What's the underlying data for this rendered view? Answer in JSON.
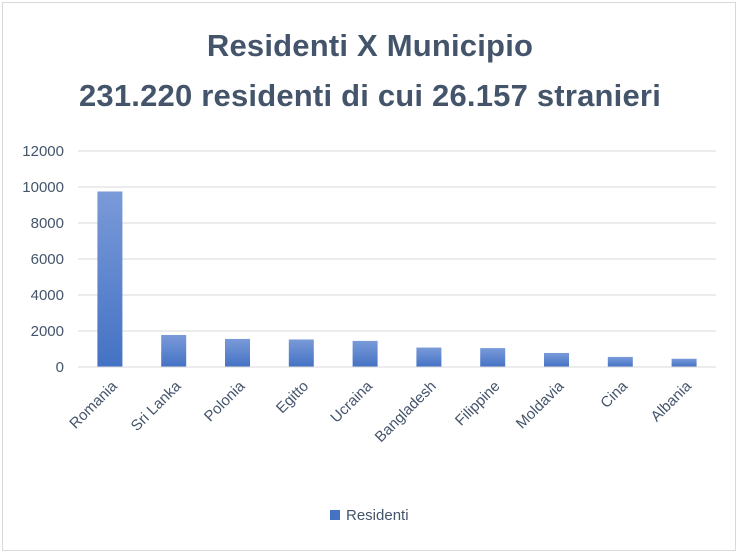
{
  "chart_data": {
    "type": "bar",
    "title": "Residenti X Municipio",
    "subtitle": "231.220 residenti di cui 26.157 stranieri",
    "categories": [
      "Romania",
      "Sri Lanka",
      "Polonia",
      "Egitto",
      "Ucraina",
      "Bangladesh",
      "Filippine",
      "Moldavia",
      "Cina",
      "Albania"
    ],
    "series": [
      {
        "name": "Residenti",
        "values": [
          9750,
          1780,
          1560,
          1530,
          1450,
          1080,
          1050,
          780,
          560,
          460
        ],
        "color": "#4472c4"
      }
    ],
    "ylim": [
      0,
      12000
    ],
    "yticks": [
      "0",
      "2000",
      "4000",
      "6000",
      "8000",
      "10000",
      "12000"
    ],
    "grid": true,
    "legend": "bottom"
  }
}
